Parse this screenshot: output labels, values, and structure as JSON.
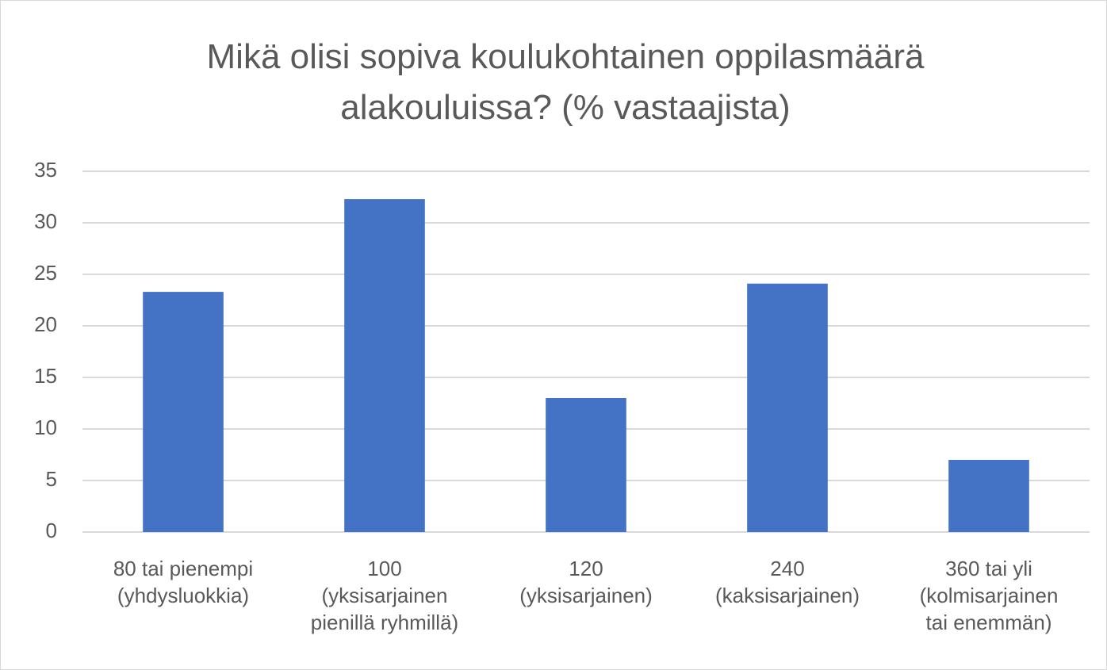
{
  "chart_data": {
    "type": "bar",
    "title": "Mikä olisi sopiva koulukohtainen oppilasmäärä alakouluissa? (% vastaajista)",
    "categories": [
      "80 tai pienempi\n(yhdysluokkia)",
      "100\n(yksisarjainen\npienillä ryhmillä)",
      "120\n(yksisarjainen)",
      "240\n(kaksisarjainen)",
      "360 tai yli\n(kolmisarjainen\ntai enemmän)"
    ],
    "values": [
      23.3,
      32.3,
      13.0,
      24.1,
      7.0
    ],
    "color": "#4472c4",
    "ylim": [
      0,
      35
    ],
    "yticks": [
      0,
      5,
      10,
      15,
      20,
      25,
      30,
      35
    ],
    "grid": true
  }
}
